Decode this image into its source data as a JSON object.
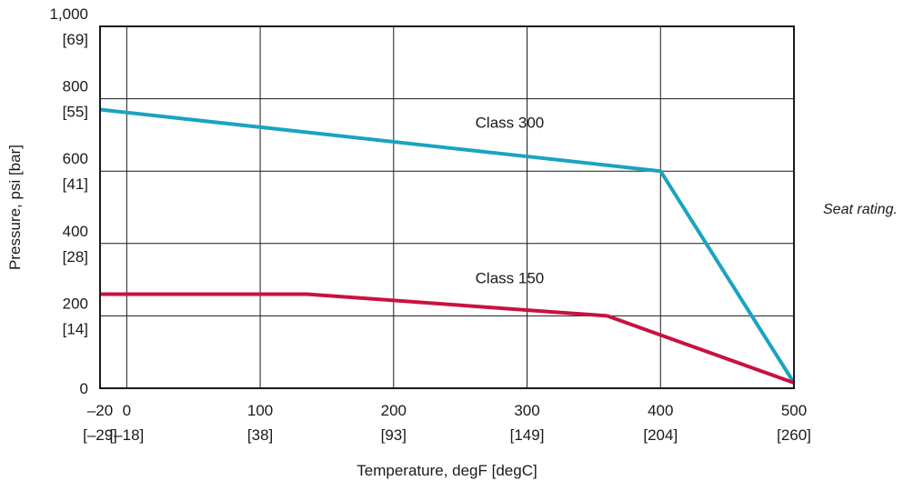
{
  "caption": "Seat rating.",
  "chart_data": {
    "type": "line",
    "xlabel": "Temperature, degF [degC]",
    "ylabel": "Pressure, psi [bar]",
    "xlim": [
      -20,
      500
    ],
    "ylim": [
      0,
      1000
    ],
    "grid": true,
    "x_ticks": [
      {
        "value": -20,
        "label": "–20",
        "sub": "[–29]"
      },
      {
        "value": 0,
        "label": "0",
        "sub": "[–18]"
      },
      {
        "value": 100,
        "label": "100",
        "sub": "[38]"
      },
      {
        "value": 200,
        "label": "200",
        "sub": "[93]"
      },
      {
        "value": 300,
        "label": "300",
        "sub": "[149]"
      },
      {
        "value": 400,
        "label": "400",
        "sub": "[204]"
      },
      {
        "value": 500,
        "label": "500",
        "sub": "[260]"
      }
    ],
    "y_ticks": [
      {
        "value": 0,
        "label": "0",
        "sub": ""
      },
      {
        "value": 200,
        "label": "200",
        "sub": "[14]"
      },
      {
        "value": 400,
        "label": "400",
        "sub": "[28]"
      },
      {
        "value": 600,
        "label": "600",
        "sub": "[41]"
      },
      {
        "value": 800,
        "label": "800",
        "sub": "[55]"
      },
      {
        "value": 1000,
        "label": "1,000",
        "sub": "[69]"
      }
    ],
    "series": [
      {
        "name": "Class 300",
        "color": "#1aa3c0",
        "x": [
          -20,
          400,
          500
        ],
        "y": [
          770,
          600,
          15
        ],
        "label_at": [
          287,
          720
        ]
      },
      {
        "name": "Class 150",
        "color": "#c8123f",
        "x": [
          -20,
          135,
          360,
          500
        ],
        "y": [
          260,
          260,
          200,
          15
        ],
        "label_at": [
          287,
          290
        ]
      }
    ]
  }
}
